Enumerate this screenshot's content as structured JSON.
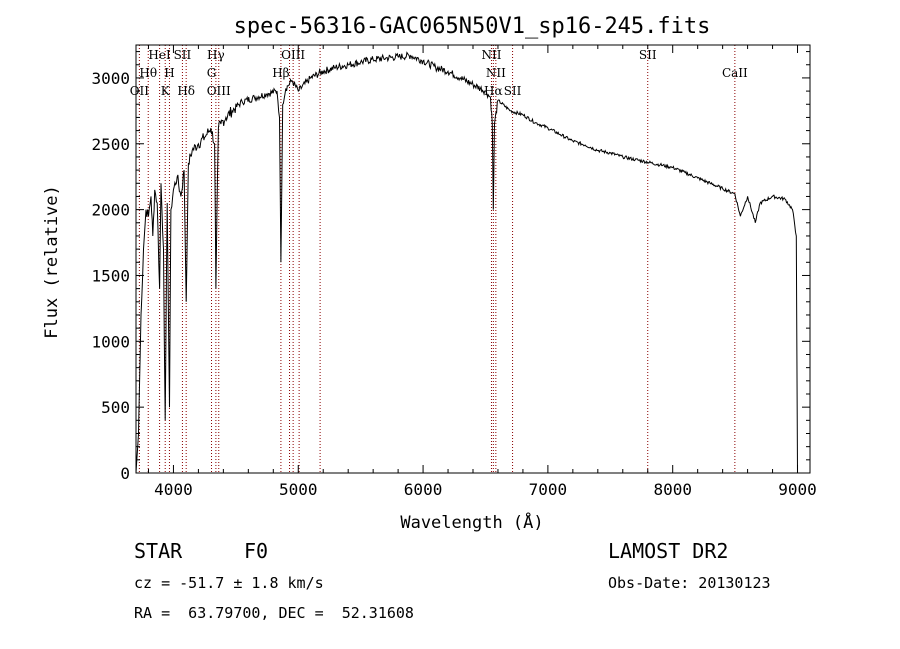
{
  "chart_data": {
    "type": "line",
    "title": "spec-56316-GAC065N50V1_sp16-245.fits",
    "xlabel": "Wavelength (Å)",
    "ylabel": "Flux (relative)",
    "xlim": [
      3700,
      9100
    ],
    "ylim": [
      0,
      3250
    ],
    "xticks": [
      4000,
      5000,
      6000,
      7000,
      8000,
      9000
    ],
    "yticks": [
      0,
      500,
      1000,
      1500,
      2000,
      2500,
      3000
    ],
    "grid": false,
    "series": [
      {
        "x": [
          3700,
          3720,
          3740,
          3760,
          3780,
          3800,
          3820,
          3835,
          3850,
          3870,
          3889,
          3900,
          3920,
          3934,
          3950,
          3968,
          3980,
          4000,
          4030,
          4060,
          4085,
          4102,
          4120,
          4150,
          4200,
          4250,
          4300,
          4330,
          4340,
          4360,
          4380,
          4420,
          4470,
          4550,
          4650,
          4750,
          4830,
          4850,
          4861,
          4875,
          4900,
          4950,
          5000,
          5100,
          5200,
          5300,
          5400,
          5500,
          5600,
          5700,
          5800,
          5900,
          6000,
          6100,
          6200,
          6300,
          6400,
          6500,
          6540,
          6555,
          6563,
          6572,
          6600,
          6700,
          6800,
          6900,
          7000,
          7100,
          7200,
          7300,
          7400,
          7500,
          7600,
          7700,
          7800,
          7900,
          8000,
          8100,
          8200,
          8300,
          8400,
          8498,
          8542,
          8600,
          8662,
          8700,
          8800,
          8900,
          8960,
          8990,
          9000
        ],
        "y": [
          0,
          300,
          1200,
          1700,
          2000,
          1950,
          2100,
          1800,
          2150,
          2050,
          1400,
          2200,
          1700,
          400,
          2050,
          500,
          2000,
          2150,
          2250,
          2100,
          2300,
          1300,
          2350,
          2450,
          2500,
          2550,
          2620,
          2500,
          1400,
          2620,
          2650,
          2700,
          2750,
          2820,
          2850,
          2880,
          2900,
          2700,
          1600,
          2800,
          2920,
          2980,
          2900,
          3000,
          3050,
          3080,
          3100,
          3120,
          3140,
          3150,
          3160,
          3170,
          3130,
          3080,
          3050,
          3000,
          2950,
          2900,
          2850,
          2650,
          2000,
          2650,
          2830,
          2750,
          2720,
          2660,
          2620,
          2570,
          2520,
          2490,
          2450,
          2430,
          2400,
          2380,
          2360,
          2340,
          2320,
          2280,
          2240,
          2200,
          2160,
          2120,
          1950,
          2100,
          1900,
          2050,
          2100,
          2080,
          2000,
          1800,
          0
        ],
        "color": "#000000"
      }
    ],
    "line_labels": [
      {
        "label": "OII",
        "wavelength": 3727
      },
      {
        "label": "Hθ",
        "wavelength": 3798
      },
      {
        "label": "HeI",
        "wavelength": 3889
      },
      {
        "label": "K",
        "wavelength": 3934
      },
      {
        "label": "H",
        "wavelength": 3968
      },
      {
        "label": "SII",
        "wavelength": 4072
      },
      {
        "label": "Hδ",
        "wavelength": 4102
      },
      {
        "label": "Hγ",
        "wavelength": 4340
      },
      {
        "label": "G",
        "wavelength": 4305
      },
      {
        "label": "OIII",
        "wavelength": 4363
      },
      {
        "label": "Hβ",
        "wavelength": 4861
      },
      {
        "label": "OIII",
        "wavelength": 4959
      },
      {
        "label": "NII",
        "wavelength": 6548
      },
      {
        "label": "NII",
        "wavelength": 6583
      },
      {
        "label": "Hα",
        "wavelength": 6563
      },
      {
        "label": "SII",
        "wavelength": 6717
      },
      {
        "label": "SII",
        "wavelength": 7800
      },
      {
        "label": "CaII",
        "wavelength": 8498
      }
    ],
    "unlabeled_lines": [
      4930,
      5007,
      5175
    ]
  },
  "info": {
    "object_type": "STAR",
    "subclass": "F0",
    "survey": "LAMOST DR2",
    "redshift": "cz = -51.7 ± 1.8 km/s",
    "obs_date": "Obs-Date: 20130123",
    "coords": "RA =  63.79700, DEC =  52.31608"
  }
}
